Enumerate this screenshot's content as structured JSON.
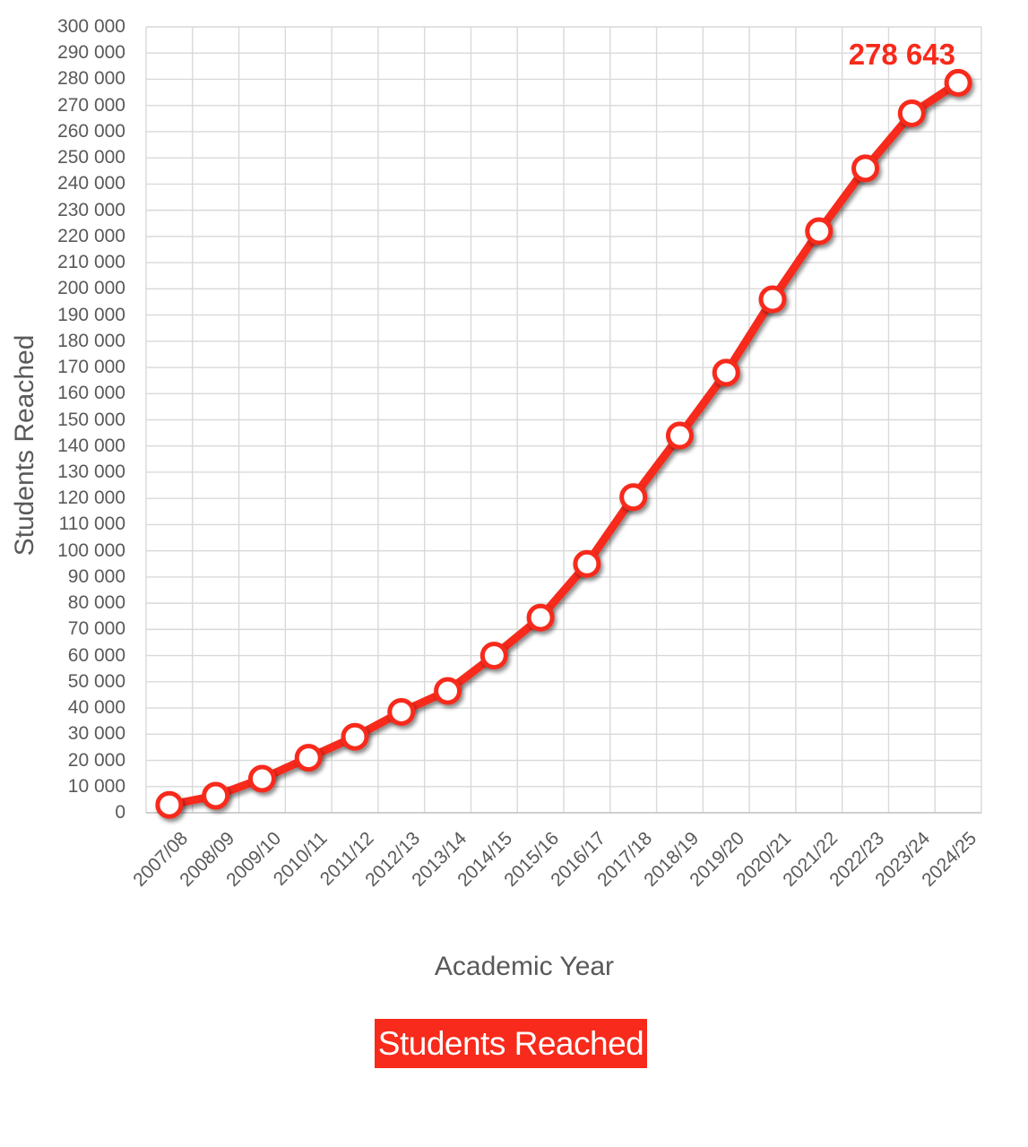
{
  "chart_data": {
    "type": "line",
    "title": "",
    "categories": [
      "2007/08",
      "2008/09",
      "2009/10",
      "2010/11",
      "2011/12",
      "2012/13",
      "2013/14",
      "2014/15",
      "2015/16",
      "2016/17",
      "2017/18",
      "2018/19",
      "2019/20",
      "2020/21",
      "2021/22",
      "2022/23",
      "2023/24",
      "2024/25"
    ],
    "series": [
      {
        "name": "Students Reached",
        "values": [
          3000,
          6500,
          13000,
          21000,
          29000,
          38500,
          46500,
          60000,
          74500,
          95000,
          120500,
          144000,
          168000,
          196000,
          222000,
          246000,
          267000,
          278643
        ]
      }
    ],
    "xlabel": "Academic Year",
    "ylabel": "Students Reached",
    "ylim": [
      0,
      300000
    ],
    "y_tick_step": 10000,
    "y_tick_format": "space-grouped",
    "grid": true,
    "legend_position": "bottom",
    "annotations": [
      {
        "text": "278 643",
        "target": "last-point"
      }
    ],
    "colors": {
      "line": "#f72a1b",
      "marker_fill": "#ffffff",
      "marker_ring": "#f72a1b",
      "grid": "#d9d9d9",
      "axis_line": "#c0c0c0",
      "axis_text": "#595959",
      "data_label": "#f72a1b",
      "legend_bg": "#f72a1b",
      "legend_text": "#ffffff",
      "background": "#ffffff"
    }
  },
  "axes": {
    "x_title": "Academic Year",
    "y_title": "Students Reached"
  },
  "legend": {
    "label": "Students Reached"
  },
  "annotation": {
    "value_label": "278 643"
  }
}
